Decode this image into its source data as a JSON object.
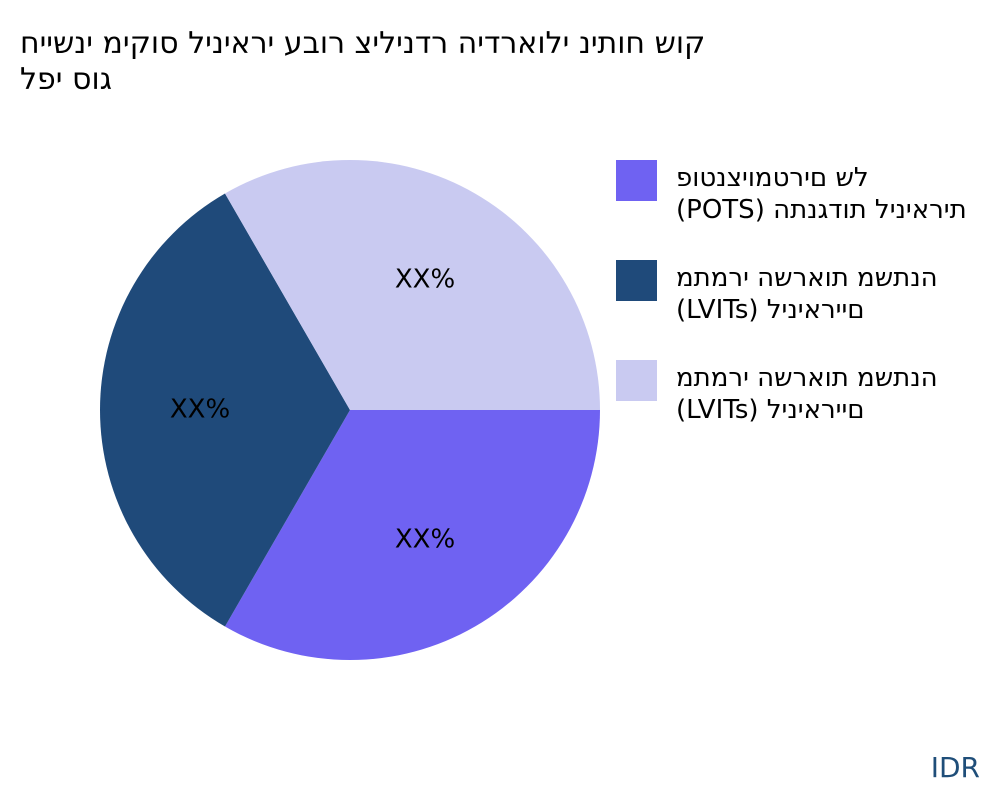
{
  "chart_data": {
    "type": "pie",
    "title_lines": [
      "קוש חותינ ילוארדיה רדניליצ רובע יראיניל סוקימ ינשייח",
      "גוס יפל"
    ],
    "slices": [
      {
        "label_lines": [
          "לש םירטמויצנטופ",
          "תיראיניל תודגנתה (POTS)"
        ],
        "value": 33.3,
        "data_label": "XX%",
        "color": "#6f62f2"
      },
      {
        "label_lines": [
          "הנתשמ תוארשה ירמתמ",
          "םייראיניל (LVITs)"
        ],
        "value": 33.3,
        "data_label": "XX%",
        "color": "#1f4a7a"
      },
      {
        "label_lines": [
          "הנתשמ תוארשה ירמתמ",
          "םייראיניל (LVITs)"
        ],
        "value": 33.3,
        "data_label": "XX%",
        "color": "#c9caf1"
      }
    ],
    "legend_position": "right"
  },
  "source_label": "IDR"
}
